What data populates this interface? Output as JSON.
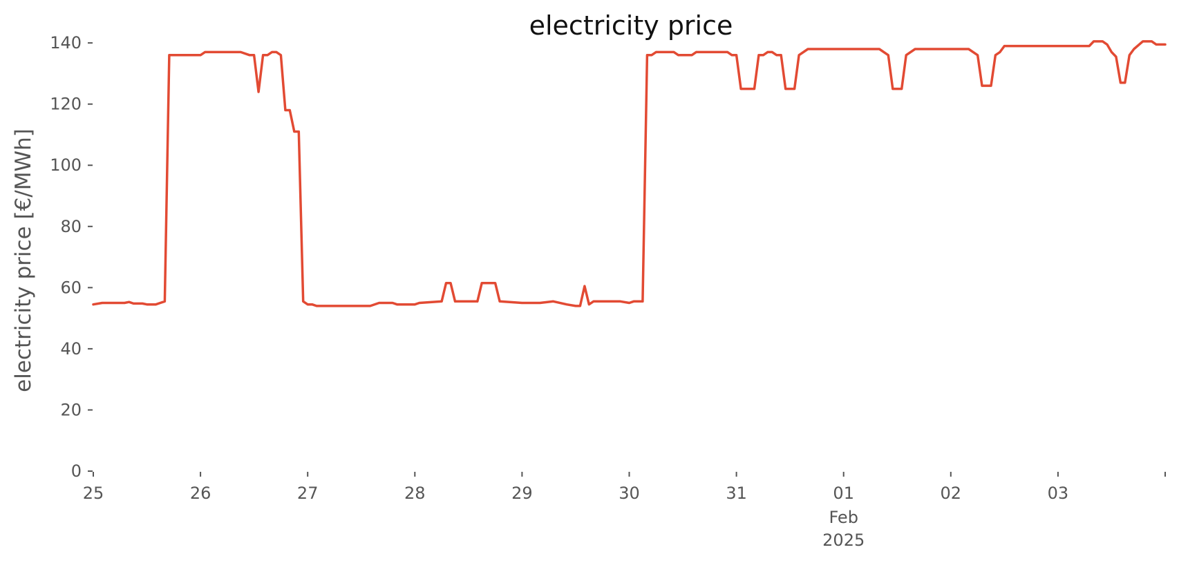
{
  "colors": {
    "series": "#e24a33",
    "text": "#555555",
    "title": "#111111"
  },
  "chart_data": {
    "type": "line",
    "title": "electricity price",
    "xlabel": "",
    "ylabel": "electricity price [€/MWh]",
    "xlim": [
      "2025-01-25 00:00",
      "2025-02-04 00:00"
    ],
    "ylim": [
      0,
      145
    ],
    "grid": false,
    "y_ticks": [
      0,
      20,
      40,
      60,
      80,
      100,
      120,
      140
    ],
    "x_ticks": [
      {
        "date": "2025-01-25",
        "label": "25",
        "sub": []
      },
      {
        "date": "2025-01-26",
        "label": "26",
        "sub": []
      },
      {
        "date": "2025-01-27",
        "label": "27",
        "sub": []
      },
      {
        "date": "2025-01-28",
        "label": "28",
        "sub": []
      },
      {
        "date": "2025-01-29",
        "label": "29",
        "sub": []
      },
      {
        "date": "2025-01-30",
        "label": "30",
        "sub": []
      },
      {
        "date": "2025-01-31",
        "label": "31",
        "sub": []
      },
      {
        "date": "2025-02-01",
        "label": "01",
        "sub": [
          "Feb",
          "2025"
        ]
      },
      {
        "date": "2025-02-02",
        "label": "02",
        "sub": []
      },
      {
        "date": "2025-02-03",
        "label": "03",
        "sub": []
      },
      {
        "date": "2025-02-04",
        "label": "",
        "sub": []
      }
    ],
    "series": [
      {
        "points": [
          [
            "2025-01-25 00:00",
            54.5
          ],
          [
            "2025-01-25 02:00",
            55
          ],
          [
            "2025-01-25 07:00",
            55
          ],
          [
            "2025-01-25 08:00",
            55.3
          ],
          [
            "2025-01-25 09:00",
            54.8
          ],
          [
            "2025-01-25 11:00",
            54.8
          ],
          [
            "2025-01-25 12:00",
            54.5
          ],
          [
            "2025-01-25 14:00",
            54.5
          ],
          [
            "2025-01-25 15:00",
            55
          ],
          [
            "2025-01-25 16:00",
            55.5
          ],
          [
            "2025-01-25 17:00",
            136
          ],
          [
            "2025-01-26 00:00",
            136
          ],
          [
            "2025-01-26 01:00",
            137
          ],
          [
            "2025-01-26 09:00",
            137
          ],
          [
            "2025-01-26 11:00",
            136
          ],
          [
            "2025-01-26 12:00",
            136
          ],
          [
            "2025-01-26 13:00",
            124
          ],
          [
            "2025-01-26 14:00",
            136
          ],
          [
            "2025-01-26 15:00",
            136
          ],
          [
            "2025-01-26 16:00",
            137
          ],
          [
            "2025-01-26 17:00",
            137
          ],
          [
            "2025-01-26 18:00",
            136
          ],
          [
            "2025-01-26 19:00",
            118
          ],
          [
            "2025-01-26 20:00",
            118
          ],
          [
            "2025-01-26 21:00",
            111
          ],
          [
            "2025-01-26 22:00",
            111
          ],
          [
            "2025-01-26 23:00",
            55.5
          ],
          [
            "2025-01-27 00:00",
            54.5
          ],
          [
            "2025-01-27 01:00",
            54.5
          ],
          [
            "2025-01-27 02:00",
            54
          ],
          [
            "2025-01-27 14:00",
            54
          ],
          [
            "2025-01-27 16:00",
            55
          ],
          [
            "2025-01-27 19:00",
            55
          ],
          [
            "2025-01-27 20:00",
            54.5
          ],
          [
            "2025-01-28 00:00",
            54.5
          ],
          [
            "2025-01-28 01:00",
            55
          ],
          [
            "2025-01-28 06:00",
            55.5
          ],
          [
            "2025-01-28 07:00",
            61.5
          ],
          [
            "2025-01-28 08:00",
            61.5
          ],
          [
            "2025-01-28 09:00",
            55.5
          ],
          [
            "2025-01-28 14:00",
            55.5
          ],
          [
            "2025-01-28 15:00",
            61.5
          ],
          [
            "2025-01-28 18:00",
            61.5
          ],
          [
            "2025-01-28 19:00",
            55.5
          ],
          [
            "2025-01-29 00:00",
            55
          ],
          [
            "2025-01-29 04:00",
            55
          ],
          [
            "2025-01-29 07:00",
            55.5
          ],
          [
            "2025-01-29 10:00",
            54.5
          ],
          [
            "2025-01-29 12:00",
            54
          ],
          [
            "2025-01-29 13:00",
            54
          ],
          [
            "2025-01-29 14:00",
            60.5
          ],
          [
            "2025-01-29 15:00",
            54.5
          ],
          [
            "2025-01-29 16:00",
            55.5
          ],
          [
            "2025-01-29 22:00",
            55.5
          ],
          [
            "2025-01-30 00:00",
            55
          ],
          [
            "2025-01-30 01:00",
            55.5
          ],
          [
            "2025-01-30 03:00",
            55.5
          ],
          [
            "2025-01-30 04:00",
            136
          ],
          [
            "2025-01-30 05:00",
            136
          ],
          [
            "2025-01-30 06:00",
            137
          ],
          [
            "2025-01-30 10:00",
            137
          ],
          [
            "2025-01-30 11:00",
            136
          ],
          [
            "2025-01-30 14:00",
            136
          ],
          [
            "2025-01-30 15:00",
            137
          ],
          [
            "2025-01-30 22:00",
            137
          ],
          [
            "2025-01-30 23:00",
            136
          ],
          [
            "2025-01-31 00:00",
            136
          ],
          [
            "2025-01-31 01:00",
            125
          ],
          [
            "2025-01-31 04:00",
            125
          ],
          [
            "2025-01-31 05:00",
            136
          ],
          [
            "2025-01-31 06:00",
            136
          ],
          [
            "2025-01-31 07:00",
            137
          ],
          [
            "2025-01-31 08:00",
            137
          ],
          [
            "2025-01-31 09:00",
            136
          ],
          [
            "2025-01-31 10:00",
            136
          ],
          [
            "2025-01-31 11:00",
            125
          ],
          [
            "2025-01-31 13:00",
            125
          ],
          [
            "2025-01-31 14:00",
            136
          ],
          [
            "2025-01-31 16:00",
            138
          ],
          [
            "2025-02-01 08:00",
            138
          ],
          [
            "2025-02-01 10:00",
            136
          ],
          [
            "2025-02-01 11:00",
            125
          ],
          [
            "2025-02-01 13:00",
            125
          ],
          [
            "2025-02-01 14:00",
            136
          ],
          [
            "2025-02-01 16:00",
            138
          ],
          [
            "2025-02-02 04:00",
            138
          ],
          [
            "2025-02-02 06:00",
            136
          ],
          [
            "2025-02-02 07:00",
            126
          ],
          [
            "2025-02-02 09:00",
            126
          ],
          [
            "2025-02-02 10:00",
            136
          ],
          [
            "2025-02-02 11:00",
            137
          ],
          [
            "2025-02-02 12:00",
            139
          ],
          [
            "2025-02-03 00:00",
            139
          ],
          [
            "2025-02-03 07:00",
            139
          ],
          [
            "2025-02-03 08:00",
            140.5
          ],
          [
            "2025-02-03 10:00",
            140.5
          ],
          [
            "2025-02-03 11:00",
            139.5
          ],
          [
            "2025-02-03 12:00",
            137
          ],
          [
            "2025-02-03 13:00",
            135.5
          ],
          [
            "2025-02-03 14:00",
            127
          ],
          [
            "2025-02-03 15:00",
            127
          ],
          [
            "2025-02-03 16:00",
            136
          ],
          [
            "2025-02-03 17:00",
            138
          ],
          [
            "2025-02-03 19:00",
            140.5
          ],
          [
            "2025-02-03 21:00",
            140.5
          ],
          [
            "2025-02-03 22:00",
            139.5
          ],
          [
            "2025-02-04 00:00",
            139.5
          ]
        ]
      }
    ]
  }
}
